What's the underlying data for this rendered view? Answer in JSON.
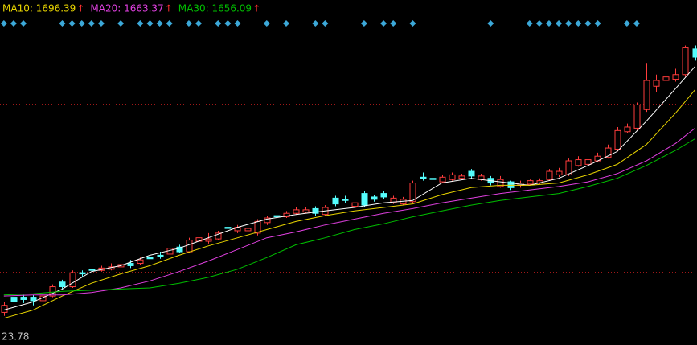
{
  "chart_data": {
    "type": "candlestick",
    "ylim": [
      1478,
      1774
    ],
    "xlim": [
      -0.4,
      71.2
    ],
    "grid_levels": [
      1541,
      1614,
      1685
    ],
    "grid_color": "#a01818",
    "up_color": "#ff3c3c",
    "down_color": "#54fcfc",
    "signal_color": "#3ca8d8",
    "low_label": "23.78",
    "candles": {
      "open": [
        1506,
        1519,
        1519,
        1519,
        1516,
        1520,
        1532,
        1528,
        1540,
        1543,
        1542,
        1543,
        1545,
        1548,
        1548,
        1553,
        1555,
        1556,
        1562,
        1558,
        1567,
        1567,
        1569,
        1579,
        1576,
        1576,
        1574,
        1583,
        1589,
        1588,
        1591,
        1592,
        1595,
        1590,
        1604,
        1603,
        1597,
        1608,
        1605,
        1608,
        1600,
        1599,
        1601,
        1622,
        1621,
        1618,
        1620,
        1621,
        1627,
        1620,
        1621,
        1614,
        1618,
        1615,
        1616,
        1617,
        1620,
        1624,
        1624,
        1632,
        1633,
        1636,
        1639,
        1646,
        1661,
        1664,
        1680,
        1700,
        1705,
        1706,
        1710,
        1732
      ],
      "high": [
        1515,
        1521,
        1521,
        1521,
        1522,
        1530,
        1534,
        1542,
        1542,
        1545,
        1546,
        1548,
        1550,
        1551,
        1553,
        1556,
        1558,
        1563,
        1564,
        1570,
        1572,
        1574,
        1576,
        1585,
        1581,
        1580,
        1586,
        1589,
        1596,
        1593,
        1596,
        1596,
        1597,
        1598,
        1606,
        1606,
        1602,
        1610,
        1607,
        1610,
        1606,
        1605,
        1619,
        1626,
        1625,
        1624,
        1626,
        1625,
        1629,
        1625,
        1623,
        1623,
        1619,
        1619,
        1620,
        1621,
        1629,
        1630,
        1638,
        1640,
        1640,
        1643,
        1650,
        1665,
        1668,
        1686,
        1720,
        1710,
        1713,
        1715,
        1735,
        1735
      ],
      "low": [
        1503,
        1513,
        1514,
        1512,
        1514,
        1519,
        1526,
        1527,
        1536,
        1540,
        1541,
        1542,
        1544,
        1544,
        1547,
        1550,
        1552,
        1555,
        1557,
        1557,
        1565,
        1565,
        1568,
        1576,
        1574,
        1575,
        1572,
        1581,
        1586,
        1587,
        1590,
        1591,
        1589,
        1589,
        1597,
        1600,
        1596,
        1596,
        1601,
        1603,
        1599,
        1598,
        1600,
        1619,
        1618,
        1617,
        1619,
        1620,
        1621,
        1619,
        1615,
        1613,
        1611,
        1613,
        1615,
        1616,
        1619,
        1622,
        1623,
        1631,
        1632,
        1635,
        1638,
        1644,
        1660,
        1662,
        1678,
        1695,
        1703,
        1704,
        1708,
        1722
      ],
      "close": [
        1512,
        1515,
        1517,
        1516,
        1520,
        1528,
        1528,
        1540,
        1539,
        1542,
        1544,
        1545,
        1547,
        1546,
        1551,
        1552,
        1554,
        1561,
        1558,
        1568,
        1570,
        1569,
        1574,
        1578,
        1579,
        1578,
        1584,
        1587,
        1588,
        1591,
        1594,
        1594,
        1591,
        1596,
        1599,
        1602,
        1600,
        1598,
        1603,
        1605,
        1604,
        1603,
        1617,
        1621,
        1620,
        1622,
        1624,
        1623,
        1623,
        1623,
        1617,
        1620,
        1613,
        1617,
        1619,
        1619,
        1627,
        1627,
        1636,
        1637,
        1637,
        1640,
        1647,
        1662,
        1665,
        1684,
        1705,
        1705,
        1708,
        1710,
        1733,
        1725
      ]
    },
    "signals": [
      0,
      1,
      2,
      6,
      7,
      8,
      9,
      10,
      12,
      14,
      15,
      16,
      17,
      19,
      20,
      22,
      23,
      24,
      27,
      29,
      32,
      33,
      37,
      39,
      40,
      42,
      50,
      54,
      55,
      56,
      57,
      58,
      59,
      60,
      61,
      64,
      65
    ],
    "lines": [
      {
        "color": "#ffffff",
        "x": [
          0,
          3,
          6,
          9,
          12,
          15,
          18,
          21,
          24,
          27,
          30,
          33,
          36,
          39,
          42,
          45,
          48,
          51,
          54,
          57,
          60,
          63,
          66,
          69,
          71
        ],
        "values": [
          1508,
          1515,
          1526,
          1541,
          1546,
          1555,
          1561,
          1570,
          1579,
          1586,
          1590,
          1593,
          1596,
          1600,
          1602,
          1617,
          1621,
          1618,
          1615,
          1621,
          1632,
          1644,
          1670,
          1698,
          1717
        ]
      },
      {
        "color": "#e8d400",
        "label": "MA10: 1696.39",
        "trend": "↑",
        "x": [
          0,
          3,
          6,
          9,
          12,
          15,
          18,
          21,
          24,
          27,
          30,
          33,
          36,
          39,
          42,
          45,
          48,
          51,
          54,
          57,
          60,
          63,
          66,
          69,
          71
        ],
        "values": [
          1501,
          1508,
          1520,
          1531,
          1539,
          1546,
          1555,
          1563,
          1570,
          1577,
          1584,
          1589,
          1593,
          1596,
          1599,
          1607,
          1613,
          1615,
          1615,
          1617,
          1624,
          1633,
          1650,
          1677,
          1697
        ]
      },
      {
        "color": "#e040e0",
        "label": "MA20: 1663.37",
        "trend": "↑",
        "x": [
          0,
          3,
          6,
          9,
          12,
          15,
          18,
          21,
          24,
          27,
          30,
          33,
          36,
          39,
          42,
          45,
          48,
          51,
          54,
          57,
          60,
          63,
          66,
          69,
          71
        ],
        "values": [
          1520,
          1521,
          1521,
          1523,
          1527,
          1533,
          1541,
          1550,
          1560,
          1570,
          1575,
          1581,
          1586,
          1591,
          1595,
          1600,
          1604,
          1608,
          1611,
          1614,
          1618,
          1625,
          1636,
          1651,
          1664
        ]
      },
      {
        "color": "#00c000",
        "label": "MA30: 1656.09",
        "trend": "↑",
        "x": [
          0,
          3,
          6,
          9,
          12,
          15,
          18,
          21,
          24,
          27,
          30,
          33,
          36,
          39,
          42,
          45,
          48,
          51,
          54,
          57,
          60,
          63,
          66,
          69,
          71
        ],
        "values": [
          1521,
          1522,
          1524,
          1525,
          1526,
          1527,
          1531,
          1536,
          1543,
          1553,
          1564,
          1570,
          1577,
          1582,
          1588,
          1593,
          1598,
          1602,
          1605,
          1608,
          1614,
          1621,
          1632,
          1645,
          1655
        ]
      }
    ],
    "trend_color": "#ff3030"
  }
}
